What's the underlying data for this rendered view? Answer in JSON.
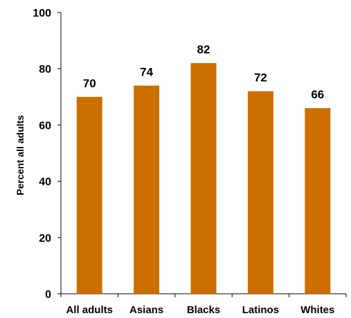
{
  "chart_data": {
    "type": "bar",
    "ylabel": "Percent all adults",
    "xlabel": "",
    "title": "",
    "categories": [
      "All adults",
      "Asians",
      "Blacks",
      "Latinos",
      "Whites"
    ],
    "values": [
      70,
      74,
      82,
      72,
      66
    ],
    "data_labels": [
      "70",
      "74",
      "82",
      "72",
      "66"
    ],
    "ylim": [
      0,
      100
    ],
    "yticks": [
      0,
      20,
      40,
      60,
      80,
      100
    ],
    "ytick_labels": [
      "0",
      "20",
      "40",
      "60",
      "80",
      "100"
    ],
    "bar_color": "#cc6f00",
    "grid": false,
    "legend": "none"
  }
}
